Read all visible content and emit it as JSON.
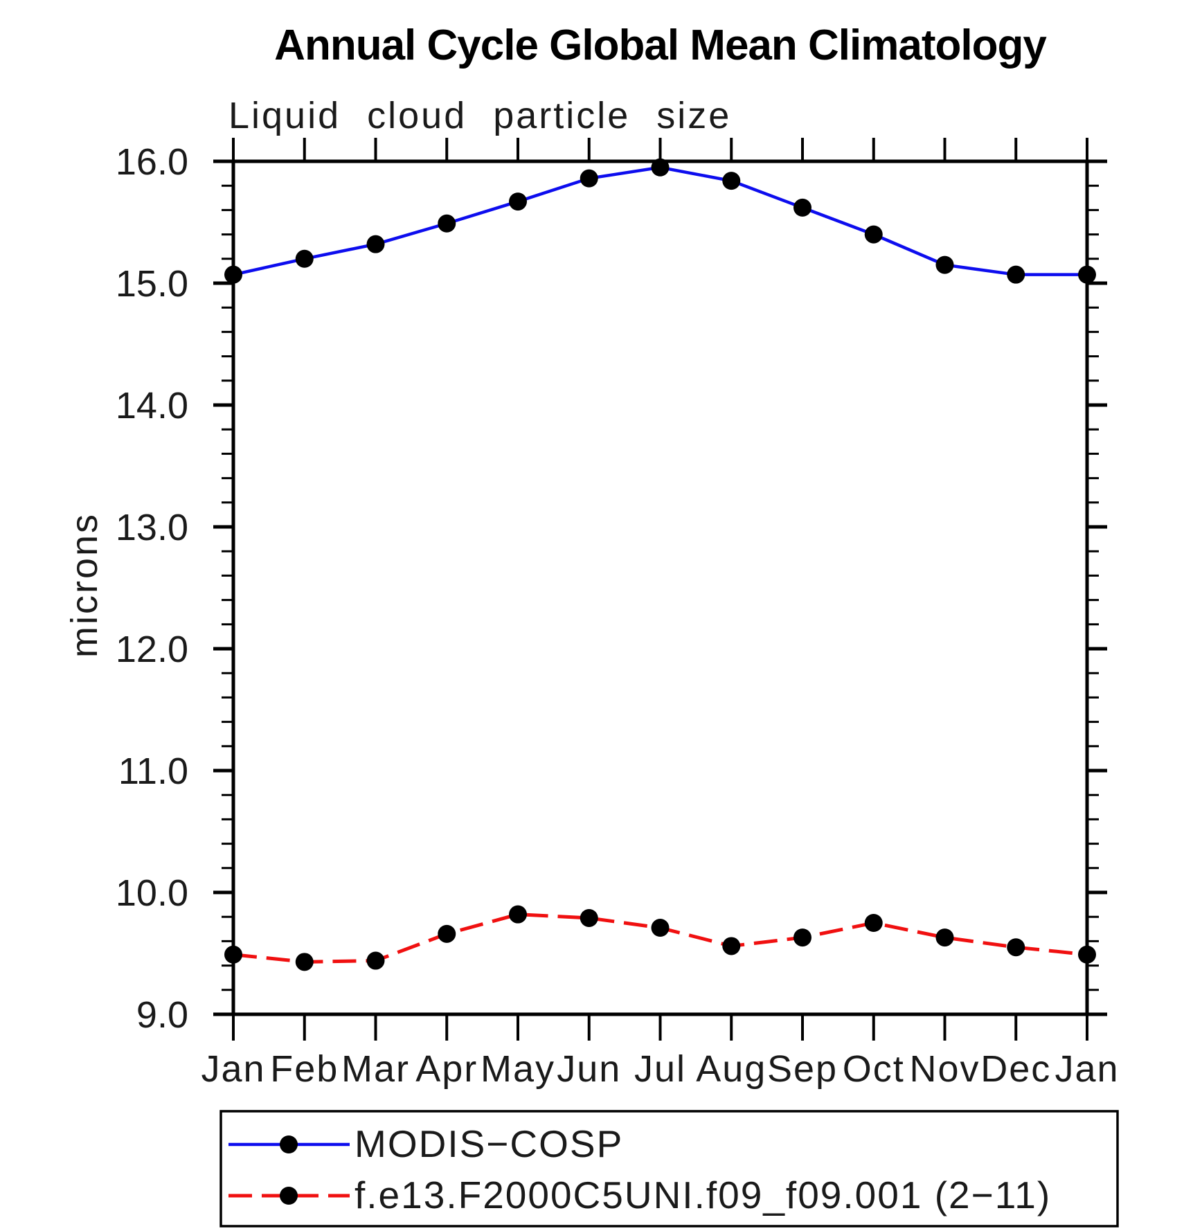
{
  "title": "Annual Cycle Global Mean Climatology",
  "subtitle": "Liquid cloud particle size",
  "ylabel": "microns",
  "colors": {
    "axis": "#000000",
    "marker": "#000000",
    "background": "#ffffff",
    "series_blue": "#0d0dee",
    "series_red": "#f01010"
  },
  "chart_data": {
    "type": "line",
    "categories": [
      "Jan",
      "Feb",
      "Mar",
      "Apr",
      "May",
      "Jun",
      "Jul",
      "Aug",
      "Sep",
      "Oct",
      "Nov",
      "Dec",
      "Jan"
    ],
    "series": [
      {
        "name": "MODIS−COSP",
        "color": "#0d0dee",
        "line_style": "solid",
        "marker": "filled-circle",
        "values": [
          15.07,
          15.2,
          15.32,
          15.49,
          15.67,
          15.86,
          15.95,
          15.84,
          15.62,
          15.4,
          15.15,
          15.07,
          15.07
        ]
      },
      {
        "name": "f.e13.F2000C5UNI.f09_f09.001 (2−11)",
        "color": "#f01010",
        "line_style": "dashed",
        "marker": "filled-circle",
        "values": [
          9.49,
          9.43,
          9.44,
          9.66,
          9.82,
          9.79,
          9.71,
          9.56,
          9.63,
          9.75,
          9.63,
          9.55,
          9.49
        ]
      }
    ],
    "title": "Annual Cycle Global Mean Climatology",
    "subtitle": "Liquid cloud particle size",
    "xlabel": "",
    "ylabel": "microns",
    "ylim": [
      9.0,
      16.0
    ],
    "ytick_major_interval": 1.0,
    "ytick_minor_interval": 0.2,
    "ytick_labels": [
      "9.0",
      "10.0",
      "11.0",
      "12.0",
      "13.0",
      "14.0",
      "15.0",
      "16.0"
    ],
    "grid": false,
    "frame": "box-with-outward-ticks",
    "legend_position": "bottom-left-box"
  }
}
